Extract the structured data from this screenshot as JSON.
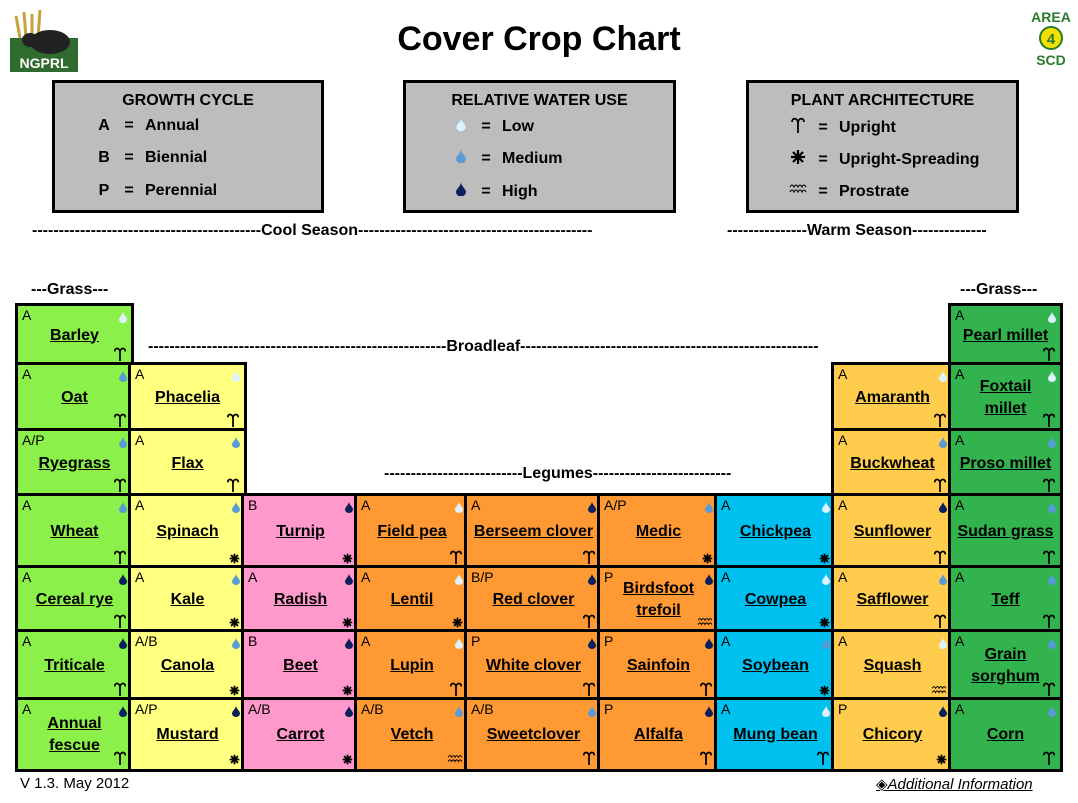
{
  "title": "Cover Crop Chart",
  "logo_left": "NGPRL",
  "logo_right": {
    "line1": "AREA",
    "line2": "4",
    "line3": "SCD"
  },
  "legends": [
    {
      "title": "GROWTH CYCLE",
      "rows": [
        {
          "sym": "A",
          "eq": "=",
          "label": "Annual"
        },
        {
          "sym": "B",
          "eq": "=",
          "label": "Biennial"
        },
        {
          "sym": "P",
          "eq": "=",
          "label": "Perennial"
        }
      ]
    },
    {
      "title": "RELATIVE WATER USE",
      "rows": [
        {
          "icon": "low",
          "eq": "=",
          "label": "Low"
        },
        {
          "icon": "medium",
          "eq": "=",
          "label": "Medium"
        },
        {
          "icon": "high",
          "eq": "=",
          "label": "High"
        }
      ]
    },
    {
      "title": "PLANT ARCHITECTURE",
      "rows": [
        {
          "icon": "upright",
          "eq": "=",
          "label": "Upright"
        },
        {
          "icon": "upright-spreading",
          "eq": "=",
          "label": "Upright-Spreading"
        },
        {
          "icon": "prostrate",
          "eq": "=",
          "label": "Prostrate"
        }
      ]
    }
  ],
  "seasons": {
    "cool": "-------------------------------------------Cool Season--------------------------------------------",
    "warm": "---------------Warm Season--------------"
  },
  "groups": {
    "grass_left": "---Grass---",
    "grass_right": "---Grass---",
    "broadleaf": "--------------------------------------------------------Broadleaf--------------------------------------------------------",
    "legumes": "--------------------------Legumes--------------------------"
  },
  "colors": {
    "green_light": "#8cf04a",
    "yellow": "#ffff80",
    "pink": "#ff99cc",
    "orange": "#ff9933",
    "cyan": "#00c0f0",
    "gold": "#ffcc4d",
    "green_dark": "#33b34d",
    "drop_low": "#ddf2ff",
    "drop_medium": "#5b9bd5",
    "drop_high": "#0b1f5c"
  },
  "cells": [
    {
      "col": 0,
      "row": 0,
      "cycle": "A",
      "name": "Barley",
      "water": "low",
      "arch": "upright",
      "color": "green_light"
    },
    {
      "col": 0,
      "row": 1,
      "cycle": "A",
      "name": "Oat",
      "water": "medium",
      "arch": "upright",
      "color": "green_light"
    },
    {
      "col": 0,
      "row": 2,
      "cycle": "A/P",
      "name": "Ryegrass",
      "water": "medium",
      "arch": "upright",
      "color": "green_light"
    },
    {
      "col": 0,
      "row": 3,
      "cycle": "A",
      "name": "Wheat",
      "water": "medium",
      "arch": "upright",
      "color": "green_light"
    },
    {
      "col": 0,
      "row": 4,
      "cycle": "A",
      "name": "Cereal rye",
      "water": "high",
      "arch": "upright",
      "color": "green_light"
    },
    {
      "col": 0,
      "row": 5,
      "cycle": "A",
      "name": "Triticale",
      "water": "high",
      "arch": "upright",
      "color": "green_light"
    },
    {
      "col": 0,
      "row": 6,
      "cycle": "A",
      "name": "Annual fescue",
      "water": "high",
      "arch": "upright",
      "color": "green_light"
    },
    {
      "col": 1,
      "row": 1,
      "cycle": "A",
      "name": "Phacelia",
      "water": "low",
      "arch": "upright",
      "color": "yellow"
    },
    {
      "col": 1,
      "row": 2,
      "cycle": "A",
      "name": "Flax",
      "water": "medium",
      "arch": "upright",
      "color": "yellow"
    },
    {
      "col": 1,
      "row": 3,
      "cycle": "A",
      "name": "Spinach",
      "water": "medium",
      "arch": "spread",
      "color": "yellow"
    },
    {
      "col": 1,
      "row": 4,
      "cycle": "A",
      "name": "Kale",
      "water": "medium",
      "arch": "spread",
      "color": "yellow"
    },
    {
      "col": 1,
      "row": 5,
      "cycle": "A/B",
      "name": "Canola",
      "water": "medium",
      "arch": "spread",
      "color": "yellow"
    },
    {
      "col": 1,
      "row": 6,
      "cycle": "A/P",
      "name": "Mustard",
      "water": "high",
      "arch": "spread",
      "color": "yellow"
    },
    {
      "col": 2,
      "row": 3,
      "cycle": "B",
      "name": "Turnip",
      "water": "high",
      "arch": "spread",
      "color": "pink"
    },
    {
      "col": 2,
      "row": 4,
      "cycle": "A",
      "name": "Radish",
      "water": "high",
      "arch": "spread",
      "color": "pink"
    },
    {
      "col": 2,
      "row": 5,
      "cycle": "B",
      "name": "Beet",
      "water": "high",
      "arch": "spread",
      "color": "pink"
    },
    {
      "col": 2,
      "row": 6,
      "cycle": "A/B",
      "name": "Carrot",
      "water": "high",
      "arch": "spread",
      "color": "pink"
    },
    {
      "col": 3,
      "row": 3,
      "cycle": "A",
      "name": "Field pea",
      "water": "low",
      "arch": "upright",
      "color": "orange"
    },
    {
      "col": 3,
      "row": 4,
      "cycle": "A",
      "name": "Lentil",
      "water": "low",
      "arch": "spread",
      "color": "orange"
    },
    {
      "col": 3,
      "row": 5,
      "cycle": "A",
      "name": "Lupin",
      "water": "low",
      "arch": "upright",
      "color": "orange"
    },
    {
      "col": 3,
      "row": 6,
      "cycle": "A/B",
      "name": "Vetch",
      "water": "medium",
      "arch": "prostrate",
      "color": "orange"
    },
    {
      "col": 4,
      "row": 3,
      "cycle": "A",
      "name": "Berseem clover",
      "water": "high",
      "arch": "upright",
      "color": "orange"
    },
    {
      "col": 4,
      "row": 4,
      "cycle": "B/P",
      "name": "Red clover",
      "water": "high",
      "arch": "upright",
      "color": "orange"
    },
    {
      "col": 4,
      "row": 5,
      "cycle": "P",
      "name": "White clover",
      "water": "high",
      "arch": "upright",
      "color": "orange"
    },
    {
      "col": 4,
      "row": 6,
      "cycle": "A/B",
      "name": "Sweetclover",
      "water": "medium",
      "arch": "upright",
      "color": "orange"
    },
    {
      "col": 5,
      "row": 3,
      "cycle": "A/P",
      "name": "Medic",
      "water": "medium",
      "arch": "spread",
      "color": "orange"
    },
    {
      "col": 5,
      "row": 4,
      "cycle": "P",
      "name": "Birdsfoot trefoil",
      "water": "high",
      "arch": "prostrate",
      "color": "orange"
    },
    {
      "col": 5,
      "row": 5,
      "cycle": "P",
      "name": "Sainfoin",
      "water": "high",
      "arch": "upright",
      "color": "orange"
    },
    {
      "col": 5,
      "row": 6,
      "cycle": "P",
      "name": "Alfalfa",
      "water": "high",
      "arch": "upright",
      "color": "orange"
    },
    {
      "col": 6,
      "row": 3,
      "cycle": "A",
      "name": "Chickpea",
      "water": "low",
      "arch": "spread",
      "color": "cyan"
    },
    {
      "col": 6,
      "row": 4,
      "cycle": "A",
      "name": "Cowpea",
      "water": "low",
      "arch": "spread",
      "color": "cyan"
    },
    {
      "col": 6,
      "row": 5,
      "cycle": "A",
      "name": "Soybean",
      "water": "medium",
      "arch": "spread",
      "color": "cyan"
    },
    {
      "col": 6,
      "row": 6,
      "cycle": "A",
      "name": "Mung bean",
      "water": "low",
      "arch": "upright",
      "color": "cyan"
    },
    {
      "col": 7,
      "row": 1,
      "cycle": "A",
      "name": "Amaranth",
      "water": "low",
      "arch": "upright",
      "color": "gold"
    },
    {
      "col": 7,
      "row": 2,
      "cycle": "A",
      "name": "Buckwheat",
      "water": "medium",
      "arch": "upright",
      "color": "gold"
    },
    {
      "col": 7,
      "row": 3,
      "cycle": "A",
      "name": "Sunflower",
      "water": "high",
      "arch": "upright",
      "color": "gold"
    },
    {
      "col": 7,
      "row": 4,
      "cycle": "A",
      "name": "Safflower",
      "water": "medium",
      "arch": "upright",
      "color": "gold"
    },
    {
      "col": 7,
      "row": 5,
      "cycle": "A",
      "name": "Squash",
      "water": "low",
      "arch": "prostrate",
      "color": "gold"
    },
    {
      "col": 7,
      "row": 6,
      "cycle": "P",
      "name": "Chicory",
      "water": "high",
      "arch": "spread",
      "color": "gold"
    },
    {
      "col": 8,
      "row": 0,
      "cycle": "A",
      "name": "Pearl millet",
      "water": "low",
      "arch": "upright",
      "color": "green_dark"
    },
    {
      "col": 8,
      "row": 1,
      "cycle": "A",
      "name": "Foxtail millet",
      "water": "low",
      "arch": "upright",
      "color": "green_dark"
    },
    {
      "col": 8,
      "row": 2,
      "cycle": "A",
      "name": "Proso millet",
      "water": "medium",
      "arch": "upright",
      "color": "green_dark"
    },
    {
      "col": 8,
      "row": 3,
      "cycle": "A",
      "name": "Sudan grass",
      "water": "medium",
      "arch": "upright",
      "color": "green_dark"
    },
    {
      "col": 8,
      "row": 4,
      "cycle": "A",
      "name": "Teff",
      "water": "medium",
      "arch": "upright",
      "color": "green_dark"
    },
    {
      "col": 8,
      "row": 5,
      "cycle": "A",
      "name": "Grain sorghum",
      "water": "medium",
      "arch": "upright",
      "color": "green_dark"
    },
    {
      "col": 8,
      "row": 6,
      "cycle": "A",
      "name": "Corn",
      "water": "medium",
      "arch": "upright",
      "color": "green_dark"
    }
  ],
  "footer": {
    "version": "V 1.3.  May 2012",
    "link_icon": "diamond-icon",
    "link": "Additional Information"
  }
}
